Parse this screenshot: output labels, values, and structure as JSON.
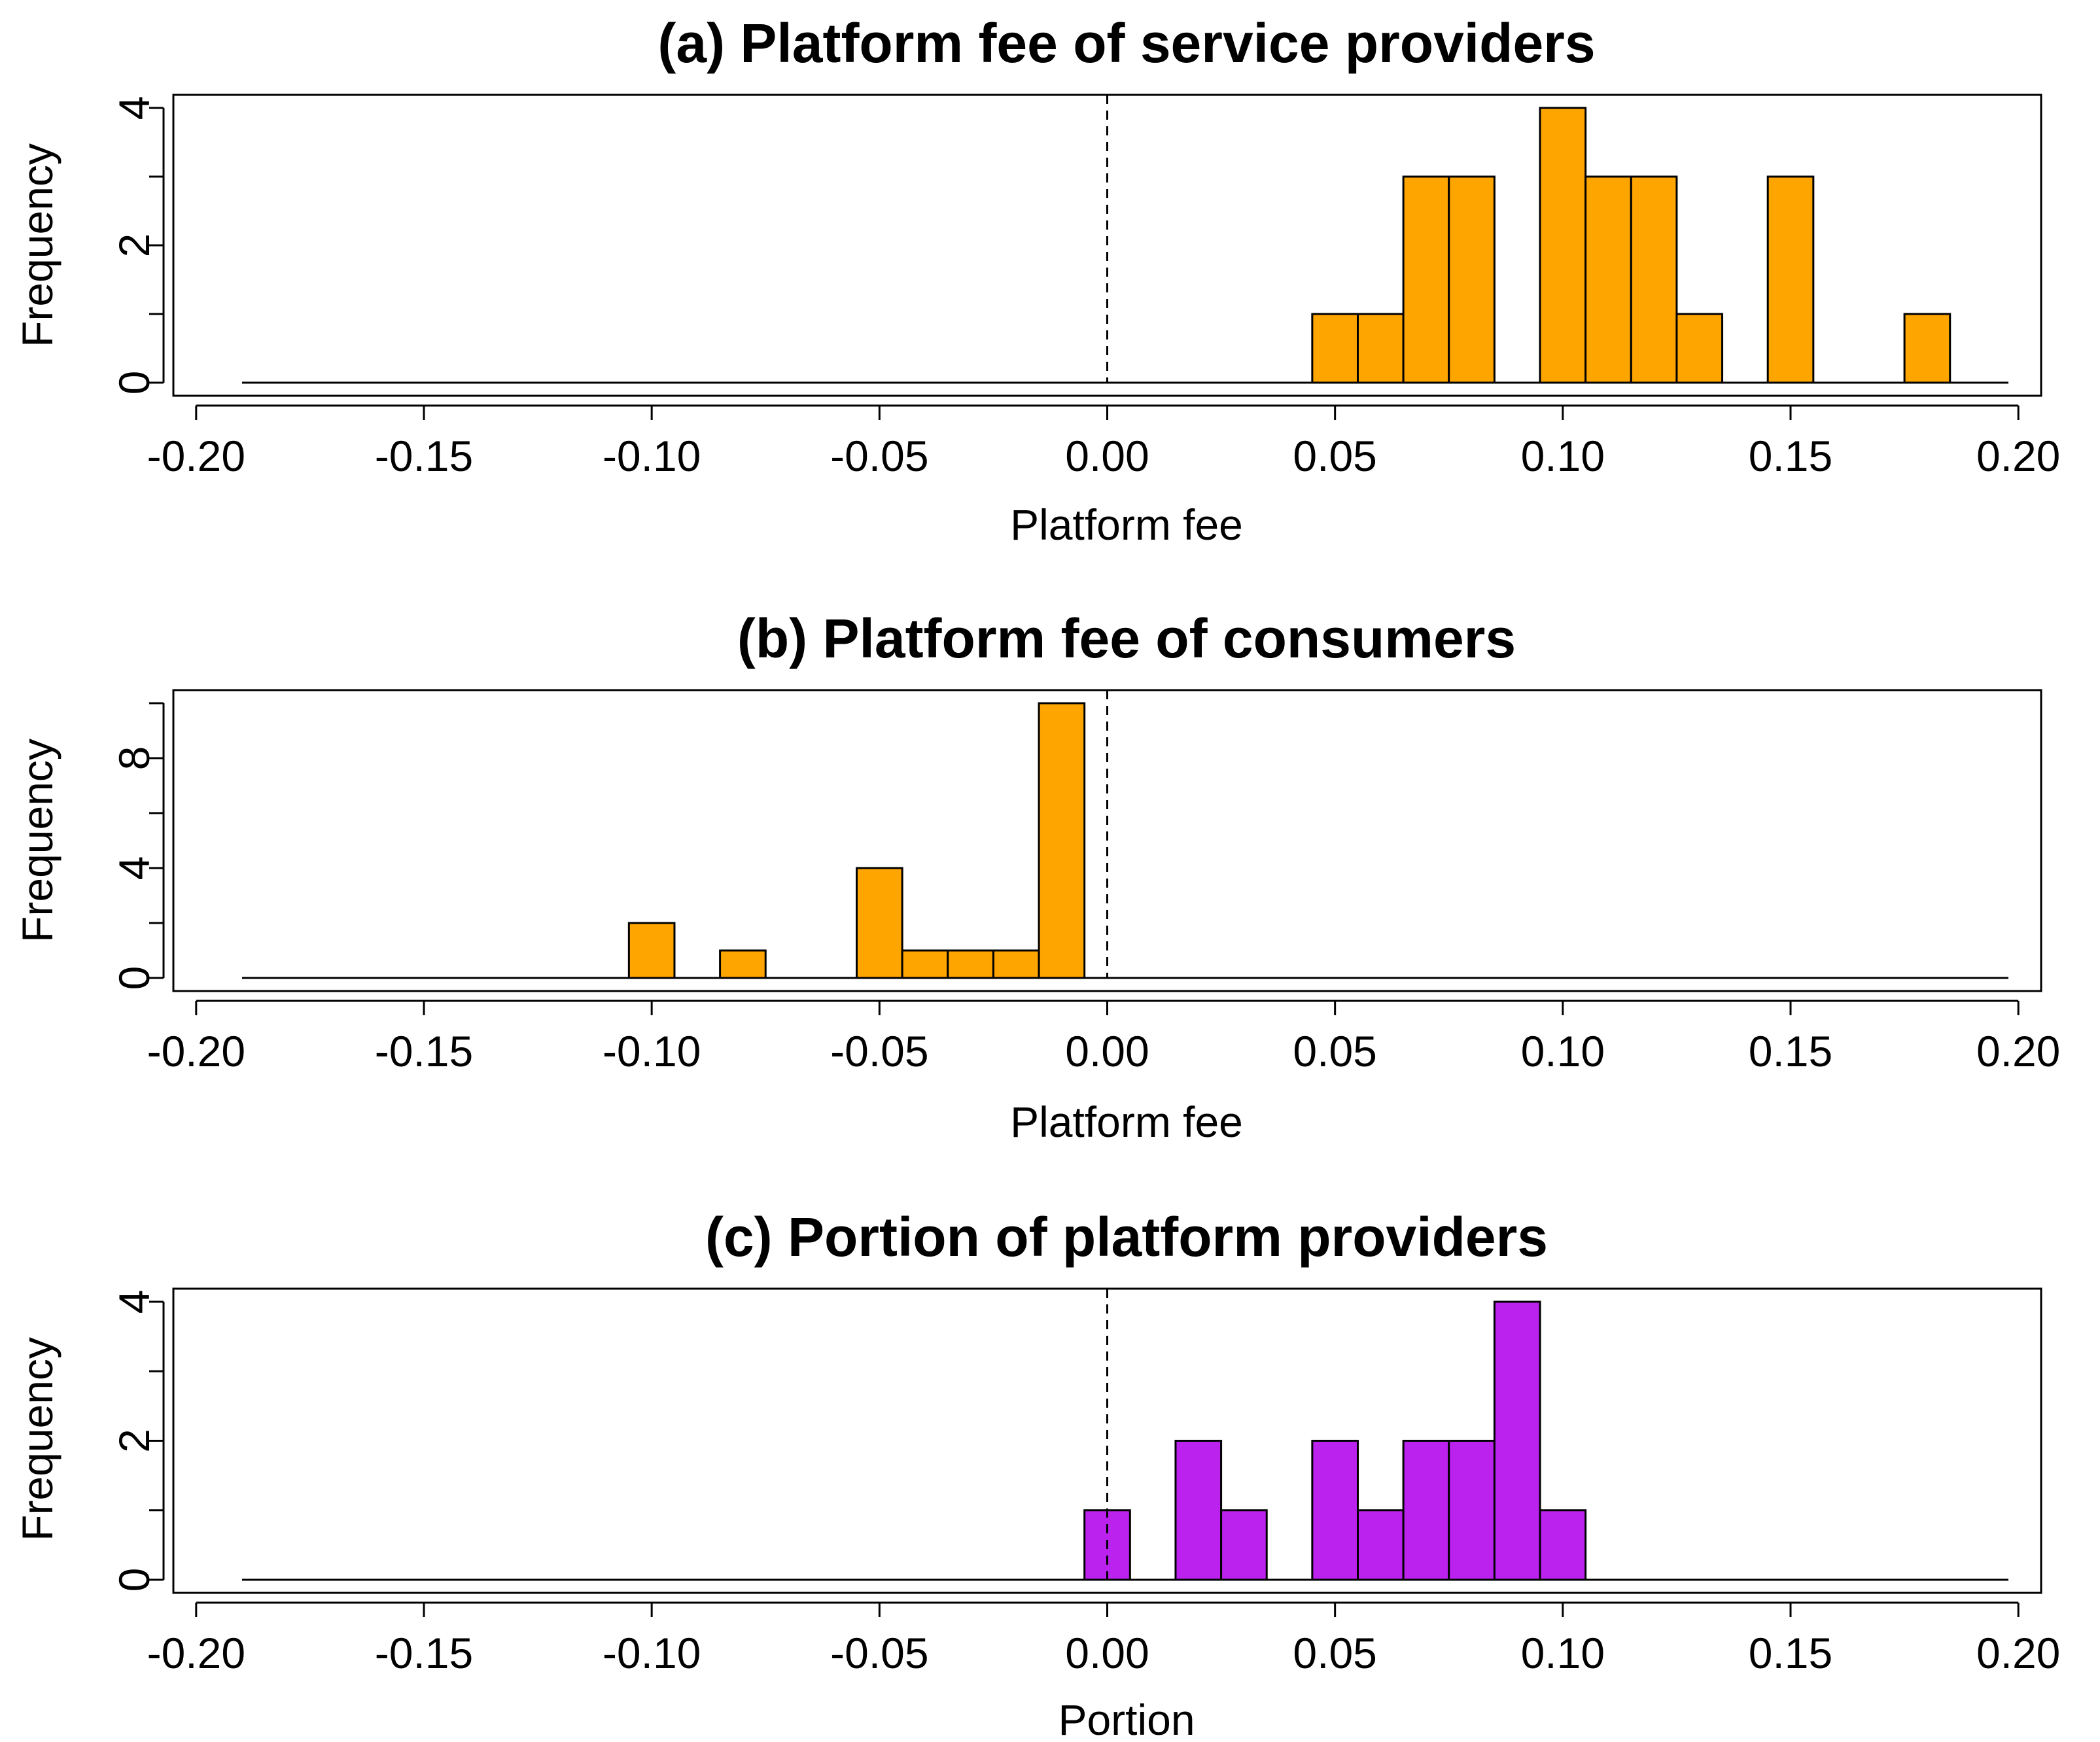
{
  "chart_data": [
    {
      "type": "bar",
      "title": "(a) Platform fee of service providers",
      "xlabel": "Platform fee",
      "ylabel": "Frequency",
      "xlim": [
        -0.205,
        0.205
      ],
      "ylim": [
        0,
        4
      ],
      "xticks": [
        -0.2,
        -0.15,
        -0.1,
        -0.05,
        0.0,
        0.05,
        0.1,
        0.15,
        0.2
      ],
      "xtick_labels": [
        "-0.20",
        "-0.15",
        "-0.10",
        "-0.05",
        "0.00",
        "0.05",
        "0.10",
        "0.15",
        "0.20"
      ],
      "yticks": [
        0,
        1,
        2,
        3,
        4
      ],
      "ytick_labels": [
        "0",
        "",
        "2",
        "",
        "4"
      ],
      "bin_width": 0.01,
      "bin_centers": [
        0.05,
        0.06,
        0.07,
        0.08,
        0.1,
        0.11,
        0.12,
        0.13,
        0.15,
        0.18
      ],
      "values": [
        1,
        1,
        3,
        3,
        4,
        3,
        3,
        1,
        3,
        1
      ],
      "color": "#FFA500",
      "reference_line_x": 0.0
    },
    {
      "type": "bar",
      "title": "(b) Platform fee of consumers",
      "xlabel": "Platform fee",
      "ylabel": "Frequency",
      "xlim": [
        -0.205,
        0.205
      ],
      "ylim": [
        0,
        10
      ],
      "xticks": [
        -0.2,
        -0.15,
        -0.1,
        -0.05,
        0.0,
        0.05,
        0.1,
        0.15,
        0.2
      ],
      "xtick_labels": [
        "-0.20",
        "-0.15",
        "-0.10",
        "-0.05",
        "0.00",
        "0.05",
        "0.10",
        "0.15",
        "0.20"
      ],
      "yticks": [
        0,
        2,
        4,
        6,
        8,
        10
      ],
      "ytick_labels": [
        "0",
        "",
        "4",
        "",
        "8",
        ""
      ],
      "bin_width": 0.01,
      "bin_centers": [
        -0.1,
        -0.08,
        -0.05,
        -0.04,
        -0.03,
        -0.02,
        -0.01
      ],
      "values": [
        2,
        1,
        4,
        1,
        1,
        1,
        10
      ],
      "color": "#FFA500",
      "reference_line_x": 0.0
    },
    {
      "type": "bar",
      "title": "(c) Portion of platform providers",
      "xlabel": "Portion",
      "ylabel": "Frequency",
      "xlim": [
        -0.205,
        0.205
      ],
      "ylim": [
        0,
        4
      ],
      "xticks": [
        -0.2,
        -0.15,
        -0.1,
        -0.05,
        0.0,
        0.05,
        0.1,
        0.15,
        0.2
      ],
      "xtick_labels": [
        "-0.20",
        "-0.15",
        "-0.10",
        "-0.05",
        "0.00",
        "0.05",
        "0.10",
        "0.15",
        "0.20"
      ],
      "yticks": [
        0,
        1,
        2,
        3,
        4
      ],
      "ytick_labels": [
        "0",
        "",
        "2",
        "",
        "4"
      ],
      "bin_width": 0.01,
      "bin_centers": [
        0.0,
        0.02,
        0.03,
        0.05,
        0.06,
        0.07,
        0.08,
        0.09,
        0.1
      ],
      "values": [
        1,
        2,
        1,
        2,
        1,
        2,
        2,
        4,
        1
      ],
      "color": "#BB22EE",
      "reference_line_x": 0.0
    }
  ]
}
